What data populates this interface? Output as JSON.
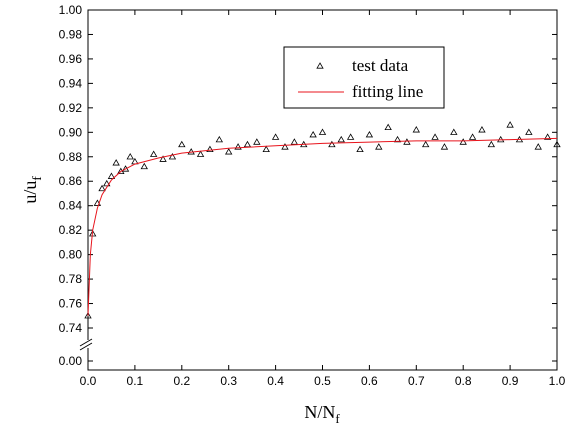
{
  "chart_data": {
    "type": "scatter",
    "xlabel": "N/N",
    "xlabel_sub": "f",
    "ylabel": "u/u",
    "ylabel_sub": "f",
    "xlim": [
      0,
      1
    ],
    "xticks": [
      {
        "value": 0,
        "label": "0.0"
      },
      0.1,
      0.2,
      0.3,
      0.4,
      0.5,
      0.6,
      0.7,
      0.8,
      0.9,
      {
        "value": 1,
        "label": "1.0"
      }
    ],
    "ylim": [
      0.74,
      1
    ],
    "y_break": [
      0,
      0.74
    ],
    "yticks": [
      {
        "value": 0,
        "label": "0.00"
      },
      0.74,
      0.76,
      0.78,
      {
        "value": 0.8,
        "label": "0.80"
      },
      0.82,
      0.84,
      0.86,
      0.88,
      {
        "value": 0.9,
        "label": "0.90"
      },
      0.92,
      0.94,
      0.96,
      0.98,
      {
        "value": 1,
        "label": "1.00"
      }
    ],
    "legend": "upper-right",
    "series": [
      {
        "name": "test data",
        "type": "scatter",
        "color": "#000000",
        "x": [
          0,
          0.01,
          0.02,
          0.03,
          0.04,
          0.05,
          0.06,
          0.07,
          0.08,
          0.09,
          0.1,
          0.12,
          0.14,
          0.16,
          0.18,
          0.2,
          0.22,
          0.24,
          0.26,
          0.28,
          0.3,
          0.32,
          0.34,
          0.36,
          0.38,
          0.4,
          0.42,
          0.44,
          0.46,
          0.48,
          0.5,
          0.52,
          0.54,
          0.56,
          0.58,
          0.6,
          0.62,
          0.64,
          0.66,
          0.68,
          0.7,
          0.72,
          0.74,
          0.76,
          0.78,
          0.8,
          0.82,
          0.84,
          0.86,
          0.88,
          0.9,
          0.92,
          0.94,
          0.96,
          0.98,
          1.0
        ],
        "values": [
          0.75,
          0.817,
          0.842,
          0.854,
          0.858,
          0.864,
          0.875,
          0.868,
          0.87,
          0.88,
          0.876,
          0.872,
          0.882,
          0.878,
          0.88,
          0.89,
          0.884,
          0.882,
          0.886,
          0.894,
          0.884,
          0.888,
          0.89,
          0.892,
          0.886,
          0.896,
          0.888,
          0.892,
          0.89,
          0.898,
          0.9,
          0.89,
          0.894,
          0.896,
          0.886,
          0.898,
          0.888,
          0.904,
          0.894,
          0.892,
          0.902,
          0.89,
          0.896,
          0.888,
          0.9,
          0.892,
          0.896,
          0.902,
          0.89,
          0.894,
          0.906,
          0.894,
          0.9,
          0.888,
          0.896,
          0.89
        ]
      },
      {
        "name": "fitting line",
        "type": "line",
        "color": "#e8141c",
        "x": [
          0,
          0.005,
          0.01,
          0.02,
          0.03,
          0.05,
          0.07,
          0.1,
          0.15,
          0.2,
          0.3,
          0.4,
          0.5,
          0.6,
          0.7,
          0.8,
          0.9,
          1.0
        ],
        "values": [
          0.75,
          0.8,
          0.82,
          0.838,
          0.849,
          0.861,
          0.868,
          0.874,
          0.879,
          0.883,
          0.887,
          0.889,
          0.891,
          0.892,
          0.893,
          0.893,
          0.894,
          0.895
        ]
      }
    ]
  }
}
